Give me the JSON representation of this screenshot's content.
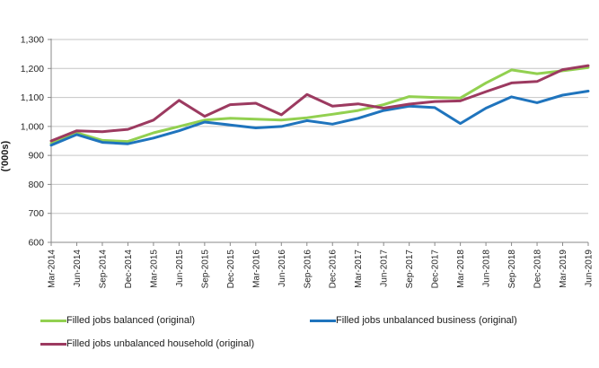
{
  "chart_data": {
    "type": "line",
    "title": "",
    "xlabel": "",
    "ylabel": "('000s)",
    "ylim": [
      600,
      1300
    ],
    "ytick_step": 100,
    "grid": true,
    "legend_position": "bottom",
    "categories": [
      "Mar-2014",
      "Jun-2014",
      "Sep-2014",
      "Dec-2014",
      "Mar-2015",
      "Jun-2015",
      "Sep-2015",
      "Dec-2015",
      "Mar-2016",
      "Jun-2016",
      "Sep-2016",
      "Dec-2016",
      "Mar-2017",
      "Jun-2017",
      "Sep-2017",
      "Dec-2017",
      "Mar-2018",
      "Jun-2018",
      "Sep-2018",
      "Dec-2018",
      "Mar-2019",
      "Jun-2019"
    ],
    "series": [
      {
        "name": "Filled jobs balanced (original)",
        "color": "#92d050",
        "values": [
          942,
          978,
          952,
          948,
          978,
          1000,
          1022,
          1028,
          1025,
          1022,
          1030,
          1042,
          1055,
          1075,
          1103,
          1100,
          1098,
          1150,
          1195,
          1182,
          1192,
          1203
        ]
      },
      {
        "name": "Filled jobs unbalanced business (original)",
        "color": "#1f74bd",
        "values": [
          935,
          972,
          945,
          940,
          960,
          985,
          1015,
          1005,
          995,
          1000,
          1020,
          1008,
          1028,
          1055,
          1070,
          1065,
          1010,
          1063,
          1102,
          1082,
          1108,
          1122
        ]
      },
      {
        "name": "Filled jobs unbalanced household (original)",
        "color": "#9c3a60",
        "values": [
          950,
          985,
          982,
          990,
          1022,
          1090,
          1035,
          1075,
          1080,
          1040,
          1110,
          1070,
          1078,
          1063,
          1077,
          1086,
          1088,
          1120,
          1150,
          1155,
          1196,
          1210
        ]
      }
    ],
    "colors": {
      "gridline": "#c6c6c6",
      "axis": "#898989",
      "tick_text": "#262626"
    }
  }
}
